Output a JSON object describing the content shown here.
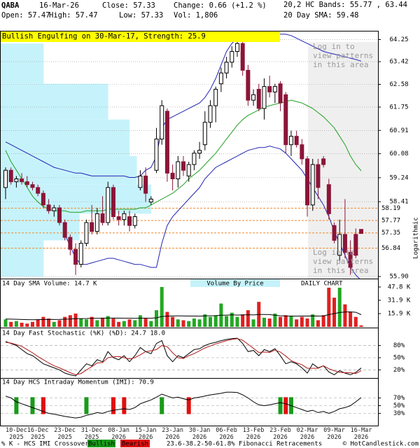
{
  "header": {
    "symbol": "QABA",
    "date": "16-Mar-26",
    "close": "Close: 57.33",
    "change": "Change: 0.66 (+1.2 %)",
    "open": "Open: 57.47",
    "high": "High: 57.47",
    "low": "Low: 57.33",
    "volume": "Vol: 1,806"
  },
  "footer": {
    "crossover_label": "% K - HCS IMI Crossover:",
    "bullish": "Bullish",
    "bearish": "Bearish",
    "fib_note": "23.6-38.2-50-61.8% Fibonacci Retracements",
    "credit": "© HotCandlestick.com"
  },
  "chart_data": [
    {
      "type": "candlestick",
      "annotation": "Bullish Engulfing on 30-Mar-17, Strength: 25.9",
      "pattern_notice": "Log in to\nview patterns\nin this area",
      "scale_label": "Logarithmic",
      "legend": [
        {
          "text": "20,2 HC Bands: 55.77 , 63.44",
          "color": "#2323b4"
        },
        {
          "text": "20 Day SMA: 59.48",
          "color": "#22a022"
        }
      ],
      "categories": [
        null,
        null,
        "10-Dec\n2025",
        null,
        null,
        null,
        "16-Dec\n2025",
        null,
        null,
        null,
        null,
        "23-Dec\n2025",
        null,
        null,
        null,
        null,
        "31-Dec\n2025",
        null,
        null,
        null,
        null,
        "08-Jan\n2026",
        null,
        null,
        null,
        null,
        "15-Jan\n2026",
        null,
        null,
        null,
        null,
        "23-Jan\n2026",
        null,
        null,
        null,
        null,
        "30-Jan\n2026",
        null,
        null,
        null,
        null,
        "06-Feb\n2026",
        null,
        null,
        null,
        null,
        "13-Feb\n2026",
        null,
        null,
        null,
        null,
        "23-Feb\n2026",
        null,
        null,
        null,
        null,
        "02-Mar\n2026",
        null,
        null,
        null,
        null,
        "09-Mar\n2026",
        null,
        null,
        null,
        null,
        "16-Mar\n2026"
      ],
      "ohlc": [
        [
          58.9,
          59.6,
          58.5,
          59.5
        ],
        [
          59.5,
          59.6,
          59.0,
          59.1
        ],
        [
          59.1,
          59.3,
          58.9,
          59.2
        ],
        [
          59.2,
          59.4,
          59.0,
          59.1
        ],
        [
          59.1,
          59.3,
          58.9,
          59.0
        ],
        [
          59.0,
          59.1,
          58.8,
          58.9
        ],
        [
          58.9,
          59.0,
          58.6,
          58.7
        ],
        [
          58.7,
          58.8,
          58.2,
          58.3
        ],
        [
          58.3,
          58.5,
          58.0,
          58.1
        ],
        [
          58.1,
          58.3,
          57.9,
          58.2
        ],
        [
          58.2,
          58.3,
          57.6,
          57.7
        ],
        [
          57.7,
          57.8,
          57.1,
          57.2
        ],
        [
          57.2,
          57.3,
          56.6,
          56.8
        ],
        [
          56.8,
          57.0,
          55.95,
          56.3
        ],
        [
          56.3,
          57.1,
          56.2,
          57.0
        ],
        [
          57.0,
          57.8,
          56.9,
          57.7
        ],
        [
          57.7,
          58.3,
          57.3,
          57.4
        ],
        [
          57.4,
          58.2,
          57.3,
          58.0
        ],
        [
          58.0,
          58.6,
          57.6,
          57.7
        ],
        [
          57.7,
          59.1,
          57.6,
          58.9
        ],
        [
          58.9,
          59.0,
          57.8,
          57.9
        ],
        [
          57.9,
          58.1,
          57.6,
          57.8
        ],
        [
          57.8,
          58.1,
          57.6,
          58.0
        ],
        [
          57.9,
          58.1,
          57.4,
          57.6
        ],
        [
          57.6,
          58.0,
          57.5,
          57.9
        ],
        [
          58.9,
          59.5,
          58.8,
          59.3
        ],
        [
          59.3,
          59.6,
          58.4,
          58.7
        ],
        [
          58.4,
          58.6,
          58.3,
          58.5
        ],
        [
          59.5,
          61.0,
          59.4,
          60.6
        ],
        [
          60.6,
          62.0,
          60.4,
          61.8
        ],
        [
          61.6,
          61.7,
          59.1,
          59.4
        ],
        [
          59.4,
          59.7,
          58.8,
          59.2
        ],
        [
          59.2,
          60.0,
          58.9,
          59.8
        ],
        [
          59.8,
          60.0,
          59.3,
          59.5
        ],
        [
          59.3,
          59.8,
          59.1,
          59.7
        ],
        [
          59.7,
          60.2,
          59.5,
          60.1
        ],
        [
          60.1,
          60.5,
          59.9,
          60.2
        ],
        [
          60.4,
          61.6,
          60.2,
          61.2
        ],
        [
          61.2,
          62.0,
          61.0,
          61.8
        ],
        [
          61.8,
          62.5,
          61.2,
          62.4
        ],
        [
          62.6,
          63.2,
          62.3,
          63.0
        ],
        [
          63.0,
          63.6,
          62.8,
          63.4
        ],
        [
          63.4,
          64.0,
          63.2,
          63.8
        ],
        [
          63.8,
          64.3,
          63.6,
          64.1
        ],
        [
          64.1,
          64.2,
          62.9,
          63.1
        ],
        [
          63.1,
          63.3,
          61.8,
          62.0
        ],
        [
          62.0,
          62.4,
          61.8,
          62.2
        ],
        [
          62.4,
          62.6,
          61.6,
          61.7
        ],
        [
          61.7,
          62.8,
          61.3,
          62.5
        ],
        [
          62.5,
          62.9,
          62.1,
          62.3
        ],
        [
          62.3,
          62.6,
          61.9,
          62.5
        ],
        [
          62.6,
          62.7,
          61.6,
          61.9
        ],
        [
          62.2,
          62.3,
          60.1,
          60.4
        ],
        [
          60.4,
          60.9,
          60.0,
          60.7
        ],
        [
          60.7,
          60.9,
          60.3,
          60.4
        ],
        [
          60.4,
          60.6,
          59.7,
          59.9
        ],
        [
          59.9,
          60.0,
          57.9,
          58.3
        ],
        [
          58.3,
          59.9,
          58.1,
          59.7
        ],
        [
          59.7,
          59.9,
          58.5,
          58.9
        ],
        [
          59.9,
          60.0,
          59.6,
          59.7
        ],
        [
          59.0,
          59.2,
          57.8,
          58.0
        ],
        [
          57.6,
          57.7,
          57.0,
          57.1
        ],
        [
          56.6,
          57.8,
          56.4,
          57.3
        ],
        [
          57.3,
          58.5,
          56.5,
          56.7
        ],
        [
          56.7,
          57.1,
          55.95,
          56.2
        ],
        [
          57.3,
          57.5,
          56.5,
          56.6
        ],
        [
          57.47,
          57.47,
          57.33,
          57.33
        ]
      ],
      "up_color": "#000000",
      "down_color": "#8b1538",
      "overlays": [
        {
          "color": "#2323b4",
          "values": [
            60.5,
            60.4,
            60.3,
            60.2,
            60.1,
            60.0,
            59.9,
            59.8,
            59.7,
            59.6,
            59.55,
            59.5,
            59.45,
            59.4,
            59.4,
            59.35,
            59.3,
            59.3,
            59.3,
            59.3,
            59.3,
            59.3,
            59.3,
            59.25,
            59.25,
            59.3,
            59.5,
            59.6,
            60.0,
            61.0,
            61.3,
            61.4,
            61.5,
            61.6,
            61.7,
            61.8,
            61.9,
            62.1,
            62.4,
            62.8,
            63.3,
            63.8,
            64.1,
            64.3,
            64.4,
            64.45,
            64.45,
            64.45,
            64.45,
            64.45,
            64.45,
            64.45,
            64.45,
            64.4,
            64.3,
            64.2,
            64.1,
            64.0,
            63.9,
            63.8,
            63.75,
            63.7,
            63.65,
            63.6,
            63.55,
            63.5,
            63.44
          ]
        },
        {
          "color": "#2323b4",
          "values": [
            null,
            null,
            null,
            null,
            null,
            null,
            null,
            null,
            null,
            null,
            null,
            57.3,
            56.9,
            56.5,
            56.3,
            56.3,
            56.35,
            56.4,
            56.45,
            56.5,
            56.5,
            56.45,
            56.4,
            56.35,
            56.3,
            56.3,
            56.25,
            56.2,
            56.2,
            57.0,
            57.6,
            57.9,
            58.1,
            58.3,
            58.5,
            58.7,
            58.9,
            59.2,
            59.4,
            59.6,
            59.7,
            59.8,
            59.9,
            60.0,
            60.1,
            60.2,
            60.25,
            60.3,
            60.3,
            60.35,
            60.3,
            60.25,
            60.1,
            59.9,
            59.7,
            59.5,
            59.2,
            58.9,
            58.6,
            58.3,
            57.9,
            57.4,
            57.0,
            56.6,
            56.2,
            55.95,
            55.77
          ]
        },
        {
          "color": "#22a022",
          "values": [
            60.2,
            59.8,
            59.5,
            59.2,
            58.9,
            58.6,
            58.4,
            58.25,
            58.15,
            58.1,
            58.1,
            58.1,
            58.05,
            58.05,
            58.05,
            58.1,
            58.1,
            58.1,
            58.1,
            58.15,
            58.15,
            58.15,
            58.15,
            58.15,
            58.15,
            58.2,
            58.2,
            58.3,
            58.4,
            58.5,
            58.6,
            58.7,
            58.85,
            59.0,
            59.2,
            59.35,
            59.5,
            59.7,
            59.9,
            60.1,
            60.35,
            60.6,
            60.85,
            61.1,
            61.3,
            61.45,
            61.55,
            61.65,
            61.75,
            61.8,
            61.85,
            61.9,
            61.95,
            62.0,
            61.95,
            61.9,
            61.8,
            61.7,
            61.55,
            61.4,
            61.2,
            61.0,
            60.7,
            60.4,
            60.0,
            59.7,
            59.48
          ]
        }
      ],
      "fib_levels": [
        58.19,
        57.77,
        57.35,
        56.84
      ],
      "fib_color": "#f08a30",
      "volume_by_price": {
        "label": "Volume By Price",
        "color": "#c6f3fb",
        "bins": [
          55.9,
          57.1,
          58.0,
          59.0,
          60.0,
          61.3,
          62.6,
          64.1
        ],
        "values": [
          60,
          110,
          210,
          190,
          180,
          150,
          60
        ]
      },
      "log_scale": true,
      "grid": true,
      "ylim": [
        55.9,
        64.58
      ],
      "yticks": [
        64.25,
        63.42,
        62.58,
        61.75,
        60.91,
        60.08,
        59.24,
        58.41,
        {
          "value": 55.9,
          "label": "55.90"
        }
      ]
    },
    {
      "type": "bar",
      "title": "14 Day SMA Volume: 14.7 K",
      "annotation": "DAILY CHART",
      "up_color": "#22a822",
      "down_color": "#e02020",
      "sma_color": "#000000",
      "values": [
        9000,
        6000,
        7000,
        5000,
        4000,
        6000,
        9000,
        12000,
        10000,
        6000,
        8000,
        12000,
        14000,
        16000,
        10000,
        9000,
        12000,
        8000,
        11000,
        13000,
        10000,
        6000,
        7000,
        9000,
        8000,
        14000,
        10000,
        7000,
        20000,
        47800,
        18000,
        12000,
        9000,
        8000,
        7000,
        10000,
        9000,
        15000,
        12000,
        14000,
        28000,
        13000,
        17000,
        12000,
        15000,
        20000,
        9000,
        30000,
        11000,
        10000,
        16000,
        12000,
        14000,
        13000,
        9000,
        12000,
        10000,
        15000,
        8000,
        14000,
        47000,
        35000,
        47000,
        27000,
        18000,
        12000,
        1806
      ],
      "sma": [
        9500,
        9300,
        9100,
        8900,
        8700,
        8600,
        8700,
        8900,
        9000,
        8900,
        9000,
        9200,
        9500,
        9900,
        10000,
        10100,
        10300,
        10300,
        10400,
        10600,
        10600,
        10500,
        10400,
        10400,
        10300,
        10500,
        10500,
        10400,
        10900,
        12500,
        12900,
        13100,
        13200,
        13100,
        13000,
        13000,
        12900,
        13200,
        13300,
        13400,
        14000,
        14100,
        14400,
        14200,
        14300,
        14600,
        14300,
        14900,
        14900,
        14800,
        13900,
        13300,
        13100,
        13000,
        12900,
        13000,
        13000,
        13100,
        13000,
        13100,
        14800,
        15900,
        17300,
        17800,
        18000,
        17500,
        14700
      ],
      "ylim": [
        0,
        52000
      ],
      "yticks": [
        {
          "value": 47800,
          "label": "47.8 K"
        },
        {
          "value": 31900,
          "label": "31.9 K"
        },
        {
          "value": 15900,
          "label": "15.9 K"
        }
      ]
    },
    {
      "type": "line",
      "title": "14 Day Fast Stochastic (%K) (%D): 24.7  18.0",
      "series": [
        {
          "color": "#000000",
          "values": [
            90,
            85,
            80,
            70,
            60,
            55,
            45,
            35,
            30,
            25,
            20,
            12,
            8,
            5,
            20,
            35,
            30,
            45,
            40,
            65,
            50,
            45,
            55,
            40,
            55,
            75,
            65,
            60,
            85,
            92,
            55,
            40,
            55,
            50,
            60,
            70,
            72,
            80,
            85,
            88,
            92,
            95,
            97,
            98,
            85,
            65,
            68,
            55,
            70,
            65,
            72,
            55,
            35,
            40,
            35,
            25,
            12,
            35,
            25,
            30,
            15,
            8,
            18,
            12,
            8,
            14,
            24.7
          ]
        },
        {
          "color": "#b01818",
          "values": [
            88,
            86,
            82,
            78,
            70,
            62,
            53,
            45,
            37,
            30,
            25,
            19,
            13,
            8,
            11,
            20,
            28,
            37,
            38,
            50,
            52,
            53,
            50,
            47,
            50,
            57,
            65,
            67,
            70,
            80,
            77,
            62,
            50,
            48,
            55,
            60,
            67,
            74,
            79,
            84,
            88,
            92,
            95,
            97,
            93,
            83,
            73,
            63,
            64,
            63,
            69,
            64,
            54,
            43,
            37,
            33,
            24,
            24,
            24,
            30,
            23,
            18,
            14,
            13,
            13,
            11,
            18.0
          ]
        }
      ],
      "ylim": [
        0,
        100
      ],
      "grid": true,
      "yticks": [
        {
          "value": 80,
          "label": "80%"
        },
        {
          "value": 50,
          "label": "50%"
        },
        {
          "value": 20,
          "label": "20%"
        }
      ]
    },
    {
      "type": "line",
      "title": "14 Day HCS Intraday Momentum (IMI): 70.9",
      "series": [
        {
          "color": "#000000",
          "values": [
            75,
            70,
            60,
            55,
            50,
            45,
            40,
            35,
            30,
            28,
            25,
            22,
            20,
            18,
            20,
            25,
            28,
            32,
            30,
            35,
            38,
            40,
            42,
            40,
            45,
            55,
            60,
            65,
            72,
            80,
            75,
            70,
            72,
            68,
            65,
            70,
            72,
            75,
            78,
            80,
            82,
            85,
            85,
            84,
            78,
            70,
            60,
            52,
            50,
            52,
            55,
            58,
            55,
            50,
            45,
            40,
            35,
            38,
            32,
            35,
            30,
            35,
            42,
            45,
            50,
            60,
            70.9
          ]
        }
      ],
      "bullish_crossovers": [
        2,
        5,
        15,
        29,
        51,
        53
      ],
      "bearish_crossovers": [
        7,
        20,
        22,
        34,
        52
      ],
      "bullish_color": "#1a9a1a",
      "bearish_color": "#e01010",
      "ylim": [
        0,
        100
      ],
      "grid": true,
      "yticks": [
        {
          "value": 70,
          "label": "70%"
        },
        {
          "value": 50,
          "label": "50%"
        },
        {
          "value": 30,
          "label": "30%"
        }
      ]
    }
  ]
}
